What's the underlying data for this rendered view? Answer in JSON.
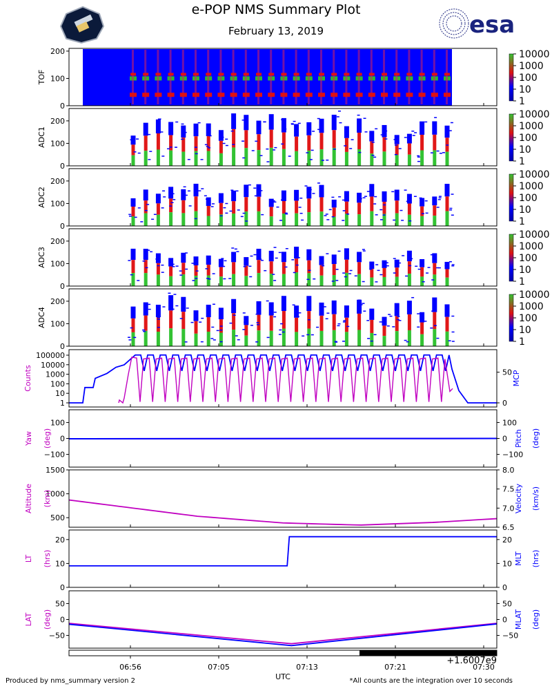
{
  "header": {
    "title": "e-POP NMS Summary Plot",
    "date": "February 13, 2019",
    "esa_logo_text": "esa"
  },
  "footer": {
    "left": "Produced by nms_summary version 2",
    "right": "*All counts are the integration over 10 seconds",
    "offset_label": "+1.6007e9"
  },
  "colors": {
    "magenta": "#c000c0",
    "blue": "#0000ff",
    "navy": "#1a237e"
  },
  "chart_data": [
    {
      "type": "heatmap",
      "name": "TOF",
      "ylabel": "TOF",
      "ylim": [
        0,
        210
      ],
      "yticks": [
        0,
        100,
        200
      ],
      "colorbar": {
        "ticks": [
          "10000",
          "1000",
          "100",
          "10",
          "1"
        ],
        "scale": "log"
      },
      "ridges": [
        100,
        40
      ]
    },
    {
      "type": "heatmap",
      "name": "ADC1",
      "ylabel": "ADC1",
      "ylim": [
        0,
        255
      ],
      "yticks": [
        0,
        100,
        200
      ],
      "colorbar": {
        "ticks": [
          "10000",
          "1000",
          "100",
          "10",
          "1"
        ],
        "scale": "log"
      }
    },
    {
      "type": "heatmap",
      "name": "ADC2",
      "ylabel": "ADC2",
      "ylim": [
        0,
        255
      ],
      "yticks": [
        0,
        100,
        200
      ],
      "colorbar": {
        "ticks": [
          "10000",
          "1000",
          "100",
          "10",
          "1"
        ],
        "scale": "log"
      }
    },
    {
      "type": "heatmap",
      "name": "ADC3",
      "ylabel": "ADC3",
      "ylim": [
        0,
        255
      ],
      "yticks": [
        0,
        100,
        200
      ],
      "colorbar": {
        "ticks": [
          "10000",
          "1000",
          "100",
          "10",
          "1"
        ],
        "scale": "log"
      }
    },
    {
      "type": "heatmap",
      "name": "ADC4",
      "ylabel": "ADC4",
      "ylim": [
        0,
        255
      ],
      "yticks": [
        0,
        100,
        200
      ],
      "colorbar": {
        "ticks": [
          "10000",
          "1000",
          "100",
          "10",
          "1"
        ],
        "scale": "log"
      }
    },
    {
      "type": "line",
      "name": "Counts-MCP",
      "ylabel": "Counts",
      "ylabel_right": "MCP",
      "yscale": "log",
      "yticks": [
        "1",
        "10",
        "100",
        "1000",
        "10000",
        "100000"
      ],
      "yticks_right": [
        "0",
        "50"
      ],
      "series": [
        {
          "name": "Counts",
          "axis": "left",
          "color": "#c000c0"
        },
        {
          "name": "MCP",
          "axis": "right",
          "color": "#0000ff"
        }
      ]
    },
    {
      "type": "line",
      "name": "Yaw-Pitch",
      "ylabel": "Yaw",
      "ylabel2": "(deg)",
      "ylabel_right": "Pitch",
      "ylabel_right2": "(deg)",
      "ylim": [
        -180,
        180
      ],
      "yticks": [
        "100",
        "0",
        "−100"
      ],
      "yticks_right": [
        "100",
        "0",
        "−100"
      ],
      "series": [
        {
          "name": "Yaw",
          "axis": "left",
          "color": "#c000c0",
          "values": [
            0,
            0
          ]
        },
        {
          "name": "Pitch",
          "axis": "right",
          "color": "#0000ff",
          "values": [
            0,
            0
          ]
        }
      ]
    },
    {
      "type": "line",
      "name": "Altitude-Velocity",
      "ylabel": "Altitude",
      "ylabel2": "(km)",
      "ylabel_right": "Velocity",
      "ylabel_right2": "(km/s)",
      "ylim": [
        300,
        1500
      ],
      "ylim_right": [
        6.5,
        8.0
      ],
      "yticks": [
        "1500",
        "1000",
        "500"
      ],
      "yticks_right": [
        "8.0",
        "7.5",
        "7.0",
        "6.5"
      ],
      "series": [
        {
          "name": "Altitude",
          "axis": "left",
          "color": "#c000c0",
          "x": [
            0,
            0.3,
            0.5,
            0.68,
            0.85,
            1.0
          ],
          "values": [
            870,
            530,
            390,
            345,
            400,
            480
          ]
        }
      ]
    },
    {
      "type": "line",
      "name": "LT-MLT",
      "ylabel": "LT",
      "ylabel2": "(hrs)",
      "ylabel_right": "MLT",
      "ylabel_right2": "(hrs)",
      "ylim": [
        0,
        24
      ],
      "yticks": [
        "20",
        "10",
        "0"
      ],
      "yticks_right": [
        "20",
        "10",
        "0"
      ],
      "series": [
        {
          "name": "LT",
          "axis": "left",
          "color": "#c000c0",
          "x": [
            0,
            0.51,
            0.515,
            1.0
          ],
          "values": [
            9.0,
            9.0,
            21.2,
            21.2
          ]
        },
        {
          "name": "MLT",
          "axis": "right",
          "color": "#0000ff",
          "x": [
            0,
            0.51,
            0.515,
            1.0
          ],
          "values": [
            9.0,
            9.0,
            21.2,
            21.2
          ]
        }
      ]
    },
    {
      "type": "line",
      "name": "LAT-MLAT",
      "ylabel": "LAT",
      "ylabel2": "(deg)",
      "ylabel_right": "MLAT",
      "ylabel_right2": "(deg)",
      "ylim": [
        -90,
        90
      ],
      "yticks": [
        "50",
        "0",
        "−50"
      ],
      "yticks_right": [
        "50",
        "0",
        "−50"
      ],
      "series": [
        {
          "name": "LAT",
          "axis": "left",
          "color": "#c000c0",
          "x": [
            0,
            0.52,
            1.0
          ],
          "values": [
            -12,
            -76,
            -12
          ]
        },
        {
          "name": "MLAT",
          "axis": "right",
          "color": "#0000ff",
          "x": [
            0,
            0.52,
            1.0
          ],
          "values": [
            -15,
            -82,
            -14
          ]
        }
      ]
    }
  ],
  "xaxis": {
    "label": "UTC",
    "ticks": [
      "06:56",
      "07:05",
      "07:13",
      "07:21",
      "07:30"
    ]
  }
}
